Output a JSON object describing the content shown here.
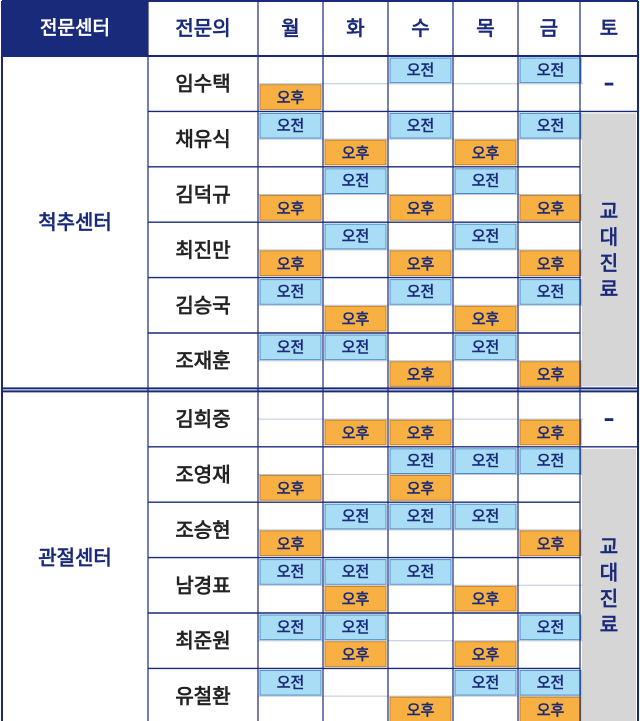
{
  "header": {
    "center_label": "전문센터",
    "doctor_label": "전문의",
    "days": [
      "월",
      "화",
      "수",
      "목",
      "금",
      "토"
    ]
  },
  "slot_labels": {
    "am": "오전",
    "pm": "오후"
  },
  "saturday_rotation_label": "교대진료",
  "saturday_none_label": "–",
  "colors": {
    "navy": "#1a2a7a",
    "am_fill": "#a9dcf5",
    "pm_fill": "#f7b041",
    "saturday_gray": "#d6d6d6"
  },
  "groups": [
    {
      "name": "척추센터",
      "doctors": [
        {
          "name": "임수택",
          "am": [
            0,
            0,
            1,
            0,
            1
          ],
          "pm": [
            1,
            0,
            0,
            0,
            0
          ],
          "saturday": "none"
        },
        {
          "name": "채유식",
          "am": [
            1,
            0,
            1,
            0,
            1
          ],
          "pm": [
            0,
            1,
            0,
            1,
            0
          ],
          "saturday": "rotation"
        },
        {
          "name": "김덕규",
          "am": [
            0,
            1,
            0,
            1,
            0
          ],
          "pm": [
            1,
            0,
            1,
            0,
            1
          ],
          "saturday": "rotation"
        },
        {
          "name": "최진만",
          "am": [
            0,
            1,
            0,
            1,
            0
          ],
          "pm": [
            1,
            0,
            1,
            0,
            1
          ],
          "saturday": "rotation"
        },
        {
          "name": "김승국",
          "am": [
            1,
            0,
            1,
            0,
            1
          ],
          "pm": [
            0,
            1,
            0,
            1,
            0
          ],
          "saturday": "rotation"
        },
        {
          "name": "조재훈",
          "am": [
            1,
            1,
            0,
            1,
            0
          ],
          "pm": [
            0,
            0,
            1,
            0,
            1
          ],
          "saturday": "rotation"
        }
      ]
    },
    {
      "name": "관절센터",
      "doctors": [
        {
          "name": "김희중",
          "am": [
            0,
            0,
            0,
            0,
            0
          ],
          "pm": [
            0,
            1,
            1,
            0,
            1
          ],
          "saturday": "none"
        },
        {
          "name": "조영재",
          "am": [
            0,
            0,
            1,
            1,
            1
          ],
          "pm": [
            1,
            0,
            1,
            0,
            0
          ],
          "saturday": "rotation"
        },
        {
          "name": "조승현",
          "am": [
            0,
            1,
            1,
            1,
            0
          ],
          "pm": [
            1,
            0,
            0,
            0,
            1
          ],
          "saturday": "rotation"
        },
        {
          "name": "남경표",
          "am": [
            1,
            1,
            1,
            0,
            0
          ],
          "pm": [
            0,
            1,
            0,
            1,
            0
          ],
          "saturday": "rotation"
        },
        {
          "name": "최준원",
          "am": [
            1,
            1,
            0,
            0,
            1
          ],
          "pm": [
            0,
            1,
            0,
            1,
            0
          ],
          "saturday": "rotation"
        },
        {
          "name": "유철환",
          "am": [
            1,
            0,
            0,
            1,
            1
          ],
          "pm": [
            0,
            0,
            1,
            0,
            1
          ],
          "saturday": "rotation"
        }
      ]
    }
  ]
}
